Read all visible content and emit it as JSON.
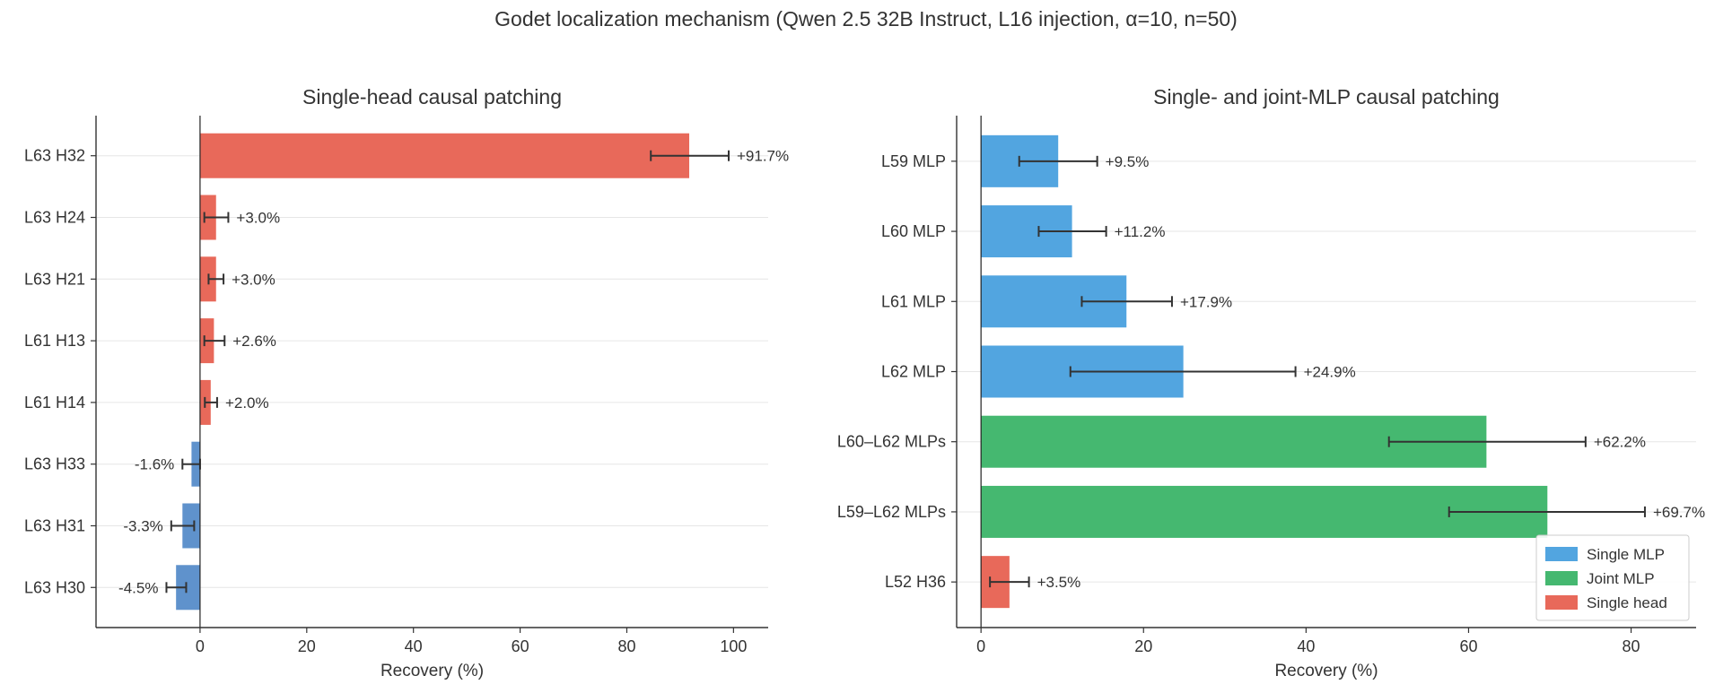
{
  "title": "Godet localization mechanism (Qwen 2.5 32B Instruct, L16 injection, α=10, n=50)",
  "colors": {
    "single_head": "#e8695a",
    "negative_head": "#5f92cc",
    "single_mlp": "#52a5e0",
    "joint_mlp": "#45b870",
    "error_bar": "#333333",
    "grid": "#e6e6e6"
  },
  "chart_data": [
    {
      "type": "bar",
      "orientation": "horizontal",
      "title": "Single-head causal patching",
      "xlabel": "Recovery (%)",
      "xlim": [
        -19.5,
        106.5
      ],
      "xticks": [
        0,
        20,
        40,
        60,
        80,
        100
      ],
      "grid": "horizontal",
      "categories": [
        "L63 H32",
        "L63 H24",
        "L63 H21",
        "L61 H13",
        "L61 H14",
        "L63 H33",
        "L63 H31",
        "L63 H30"
      ],
      "values": [
        91.7,
        3.0,
        3.0,
        2.6,
        2.0,
        -1.6,
        -3.3,
        -4.5
      ],
      "ci_low": [
        84.5,
        0.8,
        1.6,
        0.8,
        0.9,
        -3.3,
        -5.4,
        -6.3
      ],
      "ci_high": [
        99.1,
        5.3,
        4.4,
        4.6,
        3.2,
        0.0,
        -1.1,
        -2.6
      ],
      "labels": [
        "+91.7%",
        "+3.0%",
        "+3.0%",
        "+2.6%",
        "+2.0%",
        "-1.6%",
        "-3.3%",
        "-4.5%"
      ]
    },
    {
      "type": "bar",
      "orientation": "horizontal",
      "title": "Single- and joint-MLP causal patching",
      "xlabel": "Recovery (%)",
      "xlim": [
        -3,
        88
      ],
      "xticks": [
        0,
        20,
        40,
        60,
        80
      ],
      "grid": "horizontal",
      "categories": [
        "L59 MLP",
        "L60 MLP",
        "L61 MLP",
        "L62 MLP",
        "L60–L62 MLPs",
        "L59–L62 MLPs",
        "L52 H36"
      ],
      "groups": [
        "Single MLP",
        "Single MLP",
        "Single MLP",
        "Single MLP",
        "Joint MLP",
        "Joint MLP",
        "Single head"
      ],
      "values": [
        9.5,
        11.2,
        17.9,
        24.9,
        62.2,
        69.7,
        3.5
      ],
      "ci_low": [
        4.7,
        7.1,
        12.4,
        11.0,
        50.2,
        57.6,
        1.1
      ],
      "ci_high": [
        14.3,
        15.4,
        23.5,
        38.7,
        74.4,
        81.7,
        5.9
      ],
      "labels": [
        "+9.5%",
        "+11.2%",
        "+17.9%",
        "+24.9%",
        "+62.2%",
        "+69.7%",
        "+3.5%"
      ],
      "legend": {
        "position": "lower right",
        "items": [
          {
            "label": "Single MLP",
            "color": "#52a5e0"
          },
          {
            "label": "Joint MLP",
            "color": "#45b870"
          },
          {
            "label": "Single head",
            "color": "#e8695a"
          }
        ]
      }
    }
  ]
}
